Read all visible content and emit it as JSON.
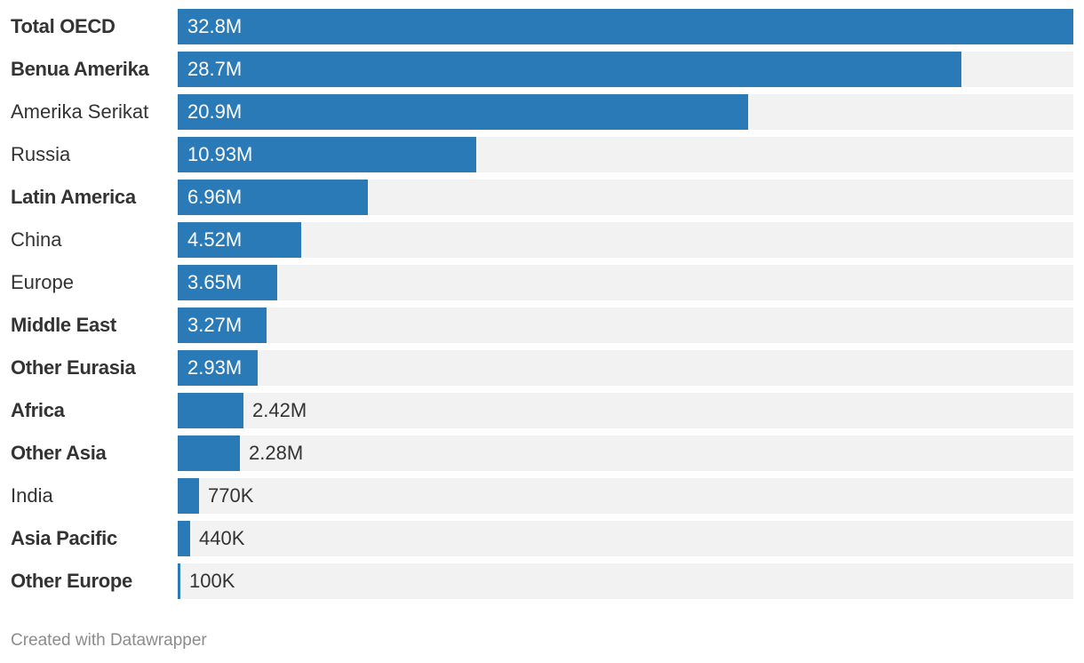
{
  "colors": {
    "bar": "#2a7ab7",
    "track": "#f2f2f2"
  },
  "chart_data": {
    "type": "bar",
    "orientation": "horizontal",
    "categories": [
      "Total OECD",
      "Benua Amerika",
      "Amerika Serikat",
      "Russia",
      "Latin America",
      "China",
      "Europe",
      "Middle East",
      "Other Eurasia",
      "Africa",
      "Other Asia",
      "India",
      "Asia Pacific",
      "Other Europe"
    ],
    "values": [
      32.8,
      28.7,
      20.9,
      10.93,
      6.96,
      4.52,
      3.65,
      3.27,
      2.93,
      2.42,
      2.28,
      0.77,
      0.44,
      0.1
    ],
    "value_labels": [
      "32.8M",
      "28.7M",
      "20.9M",
      "10.93M",
      "6.96M",
      "4.52M",
      "3.65M",
      "3.27M",
      "2.93M",
      "2.42M",
      "2.28M",
      "770K",
      "440K",
      "100K"
    ],
    "bold_labels": [
      true,
      true,
      false,
      false,
      true,
      false,
      false,
      true,
      true,
      true,
      true,
      false,
      true,
      true
    ],
    "xlim": [
      0,
      32.8
    ],
    "grid": false,
    "title": "",
    "xlabel": "",
    "ylabel": ""
  },
  "footer": {
    "credit": "Created with Datawrapper"
  }
}
